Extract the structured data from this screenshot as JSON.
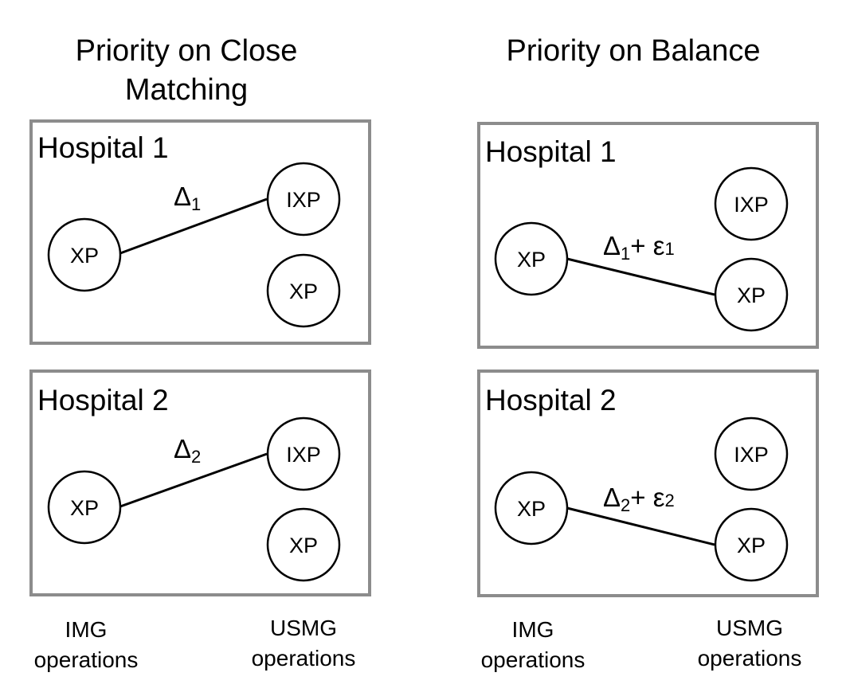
{
  "columns": [
    {
      "title_lines": [
        "Priority on Close",
        "Matching"
      ],
      "panels": [
        {
          "hospital": "Hospital 1",
          "left_node": "XP",
          "right_top_node": "IXP",
          "right_bottom_node": "XP",
          "edge_delta": "Δ",
          "edge_sub": "1",
          "edge_extra": "",
          "edge_extra_sub": ""
        },
        {
          "hospital": "Hospital 2",
          "left_node": "XP",
          "right_top_node": "IXP",
          "right_bottom_node": "XP",
          "edge_delta": "Δ",
          "edge_sub": "2",
          "edge_extra": "",
          "edge_extra_sub": ""
        }
      ],
      "footer_left": [
        "IMG",
        "operations"
      ],
      "footer_right": [
        "USMG",
        "operations"
      ]
    },
    {
      "title_lines": [
        "Priority on Balance",
        ""
      ],
      "panels": [
        {
          "hospital": "Hospital 1",
          "left_node": "XP",
          "right_top_node": "IXP",
          "right_bottom_node": "XP",
          "edge_delta": "Δ",
          "edge_sub": "1",
          "edge_extra": "+ ε",
          "edge_extra_sub": "1"
        },
        {
          "hospital": "Hospital 2",
          "left_node": "XP",
          "right_top_node": "IXP",
          "right_bottom_node": "XP",
          "edge_delta": "Δ",
          "edge_sub": "2",
          "edge_extra": "+ ε",
          "edge_extra_sub": "2"
        }
      ],
      "footer_left": [
        "IMG",
        "operations"
      ],
      "footer_right": [
        "USMG",
        "operations"
      ]
    }
  ]
}
